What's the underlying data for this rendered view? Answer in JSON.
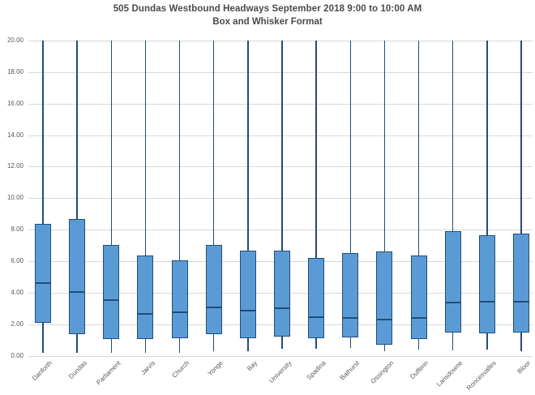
{
  "chart_data": {
    "type": "box",
    "title": "505 Dundas Westbound Headways September 2018 9:00 to 10:00 AM",
    "subtitle": "Box and Whisker Format",
    "xlabel": "",
    "ylabel": "",
    "ylim": [
      0,
      20
    ],
    "y_tick_step": 2,
    "y_tick_labels": [
      "20.00",
      "18.00",
      "16.00",
      "14.00",
      "12.00",
      "10.00",
      "8.00",
      "6.00",
      "4.00",
      "2.00",
      "0.00"
    ],
    "grid": "horizontal",
    "legend": "none",
    "note": "Upper whiskers extend to the top of the plot (clipped at y-axis max 20.00)",
    "categories": [
      "Danforth",
      "Dundas",
      "Parliament",
      "Jarvis",
      "Church",
      "Yonge",
      "Bay",
      "University",
      "Spadina",
      "Bathurst",
      "Ossington",
      "Dufferin",
      "Lansdowne",
      "Roncesvalles",
      "Bloor"
    ],
    "boxes": [
      {
        "category": "Danforth",
        "whisker_low": 0.2,
        "q1": 2.1,
        "median": 4.6,
        "q3": 8.35,
        "whisker_high": 20
      },
      {
        "category": "Dundas",
        "whisker_low": 0.2,
        "q1": 1.35,
        "median": 4.05,
        "q3": 8.7,
        "whisker_high": 20
      },
      {
        "category": "Parliament",
        "whisker_low": 0.2,
        "q1": 1.05,
        "median": 3.55,
        "q3": 7.05,
        "whisker_high": 20
      },
      {
        "category": "Jarvis",
        "whisker_low": 0.2,
        "q1": 1.05,
        "median": 2.65,
        "q3": 6.35,
        "whisker_high": 20
      },
      {
        "category": "Church",
        "whisker_low": 0.2,
        "q1": 1.1,
        "median": 2.75,
        "q3": 6.05,
        "whisker_high": 20
      },
      {
        "category": "Yonge",
        "whisker_low": 0.3,
        "q1": 1.35,
        "median": 3.05,
        "q3": 7.05,
        "whisker_high": 20
      },
      {
        "category": "Bay",
        "whisker_low": 0.3,
        "q1": 1.1,
        "median": 2.85,
        "q3": 6.65,
        "whisker_high": 20
      },
      {
        "category": "University",
        "whisker_low": 0.45,
        "q1": 1.2,
        "median": 3.0,
        "q3": 6.65,
        "whisker_high": 20
      },
      {
        "category": "Spadina",
        "whisker_low": 0.45,
        "q1": 1.1,
        "median": 2.45,
        "q3": 6.2,
        "whisker_high": 20
      },
      {
        "category": "Bathurst",
        "whisker_low": 0.5,
        "q1": 1.15,
        "median": 2.4,
        "q3": 6.5,
        "whisker_high": 20
      },
      {
        "category": "Ossington",
        "whisker_low": 0.3,
        "q1": 0.7,
        "median": 2.3,
        "q3": 6.6,
        "whisker_high": 20
      },
      {
        "category": "Dufferin",
        "whisker_low": 0.4,
        "q1": 1.05,
        "median": 2.4,
        "q3": 6.35,
        "whisker_high": 20
      },
      {
        "category": "Lansdowne",
        "whisker_low": 0.35,
        "q1": 1.45,
        "median": 3.35,
        "q3": 7.9,
        "whisker_high": 20
      },
      {
        "category": "Roncesvalles",
        "whisker_low": 0.4,
        "q1": 1.4,
        "median": 3.4,
        "q3": 7.65,
        "whisker_high": 20
      },
      {
        "category": "Bloor",
        "whisker_low": 0.3,
        "q1": 1.45,
        "median": 3.4,
        "q3": 7.75,
        "whisker_high": 20
      }
    ],
    "colors": {
      "box_fill": "#5B9BD5",
      "box_border": "#1F4E79",
      "whisker": "#1F4E79",
      "gridline": "#D9D9D9",
      "title_text": "#4a4a4a",
      "axis_text": "#595959",
      "background": "#FFFFFF"
    }
  }
}
